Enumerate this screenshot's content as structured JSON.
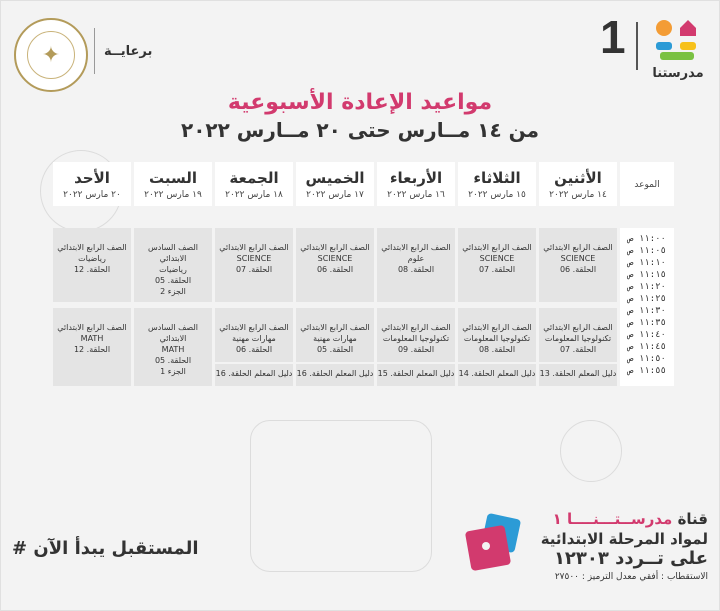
{
  "header": {
    "sponsor": "برعايــة",
    "brand_number": "1",
    "brand_name": "مدرستنا"
  },
  "title": "مواعيد الإعادة الأسبوعية",
  "subtitle": "من ١٤ مــارس حتى ٢٠ مــارس ٢٠٢٢",
  "table": {
    "time_header": "الموعد",
    "times": [
      "١١:٠٠ ص",
      "١١:٠٥ ص",
      "١١:١٠ ص",
      "١١:١٥ ص",
      "١١:٢٠ ص",
      "١١:٢٥ ص",
      "١١:٣٠ ص",
      "١١:٣٥ ص",
      "١١:٤٠ ص",
      "١١:٤٥ ص",
      "١١:٥٠ ص",
      "١١:٥٥ ص"
    ],
    "days": [
      {
        "day": "الأثنين",
        "date": "١٤ مارس ٢٠٢٢",
        "s1": "الصف الرابع الابتدائي\nSCIENCE\nالحلقة. 06",
        "s2": "الصف الرابع الابتدائي\nتكنولوجيا المعلومات\nالحلقة. 07",
        "guide": "دليل المعلم الحلقة. 13"
      },
      {
        "day": "الثلاثاء",
        "date": "١٥ مارس ٢٠٢٢",
        "s1": "الصف الرابع الابتدائي\nSCIENCE\nالحلقة. 07",
        "s2": "الصف الرابع الابتدائي\nتكنولوجيا المعلومات\nالحلقة. 08",
        "guide": "دليل المعلم الحلقة. 14"
      },
      {
        "day": "الأربعاء",
        "date": "١٦ مارس ٢٠٢٢",
        "s1": "الصف الرابع الابتدائي\nعلوم\nالحلقة. 08",
        "s2": "الصف الرابع الابتدائي\nتكنولوجيا المعلومات\nالحلقة. 09",
        "guide": "دليل المعلم الحلقة. 15"
      },
      {
        "day": "الخميس",
        "date": "١٧ مارس ٢٠٢٢",
        "s1": "الصف الرابع الابتدائي\nSCIENCE\nالحلقة. 06",
        "s2": "الصف الرابع الابتدائي\nمهارات مهنية\nالحلقة. 05",
        "guide": "دليل المعلم الحلقة. 16"
      },
      {
        "day": "الجمعة",
        "date": "١٨ مارس ٢٠٢٢",
        "s1": "الصف الرابع الابتدائي\nSCIENCE\nالحلقة. 07",
        "s2": "الصف الرابع الابتدائي\nمهارات مهنية\nالحلقة. 06",
        "guide": "دليل المعلم الحلقة. 16"
      },
      {
        "day": "السبت",
        "date": "١٩ مارس ٢٠٢٢",
        "s1": "الصف السادس الابتدائي\nرياضيات\nالحلقة. 05\nالجزء 2",
        "s2": "الصف السادس الابتدائي\nMATH\nالحلقة. 05\nالجزء 1",
        "guide": ""
      },
      {
        "day": "الأحد",
        "date": "٢٠ مارس ٢٠٢٢",
        "s1": "الصف الرابع الابتدائي\nرياضيات\nالحلقة. 12",
        "s2": "الصف الرابع الابتدائي\nMATH\nالحلقة. 12",
        "guide": ""
      }
    ]
  },
  "footer": {
    "hashtag": "# المستقبل يبدأ الآن",
    "channel_prefix": "قناة",
    "channel_name": "مدرســتـــنــــا ١",
    "line2": "لمواد المرحلة الابتدائية",
    "line3": "على تــردد ١٢٣٠٣",
    "line4": "الاستقطاب : أفقي معدل الترميز : ٢٧٥٠٠"
  },
  "colors": {
    "accent": "#d23a6e",
    "cell": "#e4e4e4"
  }
}
